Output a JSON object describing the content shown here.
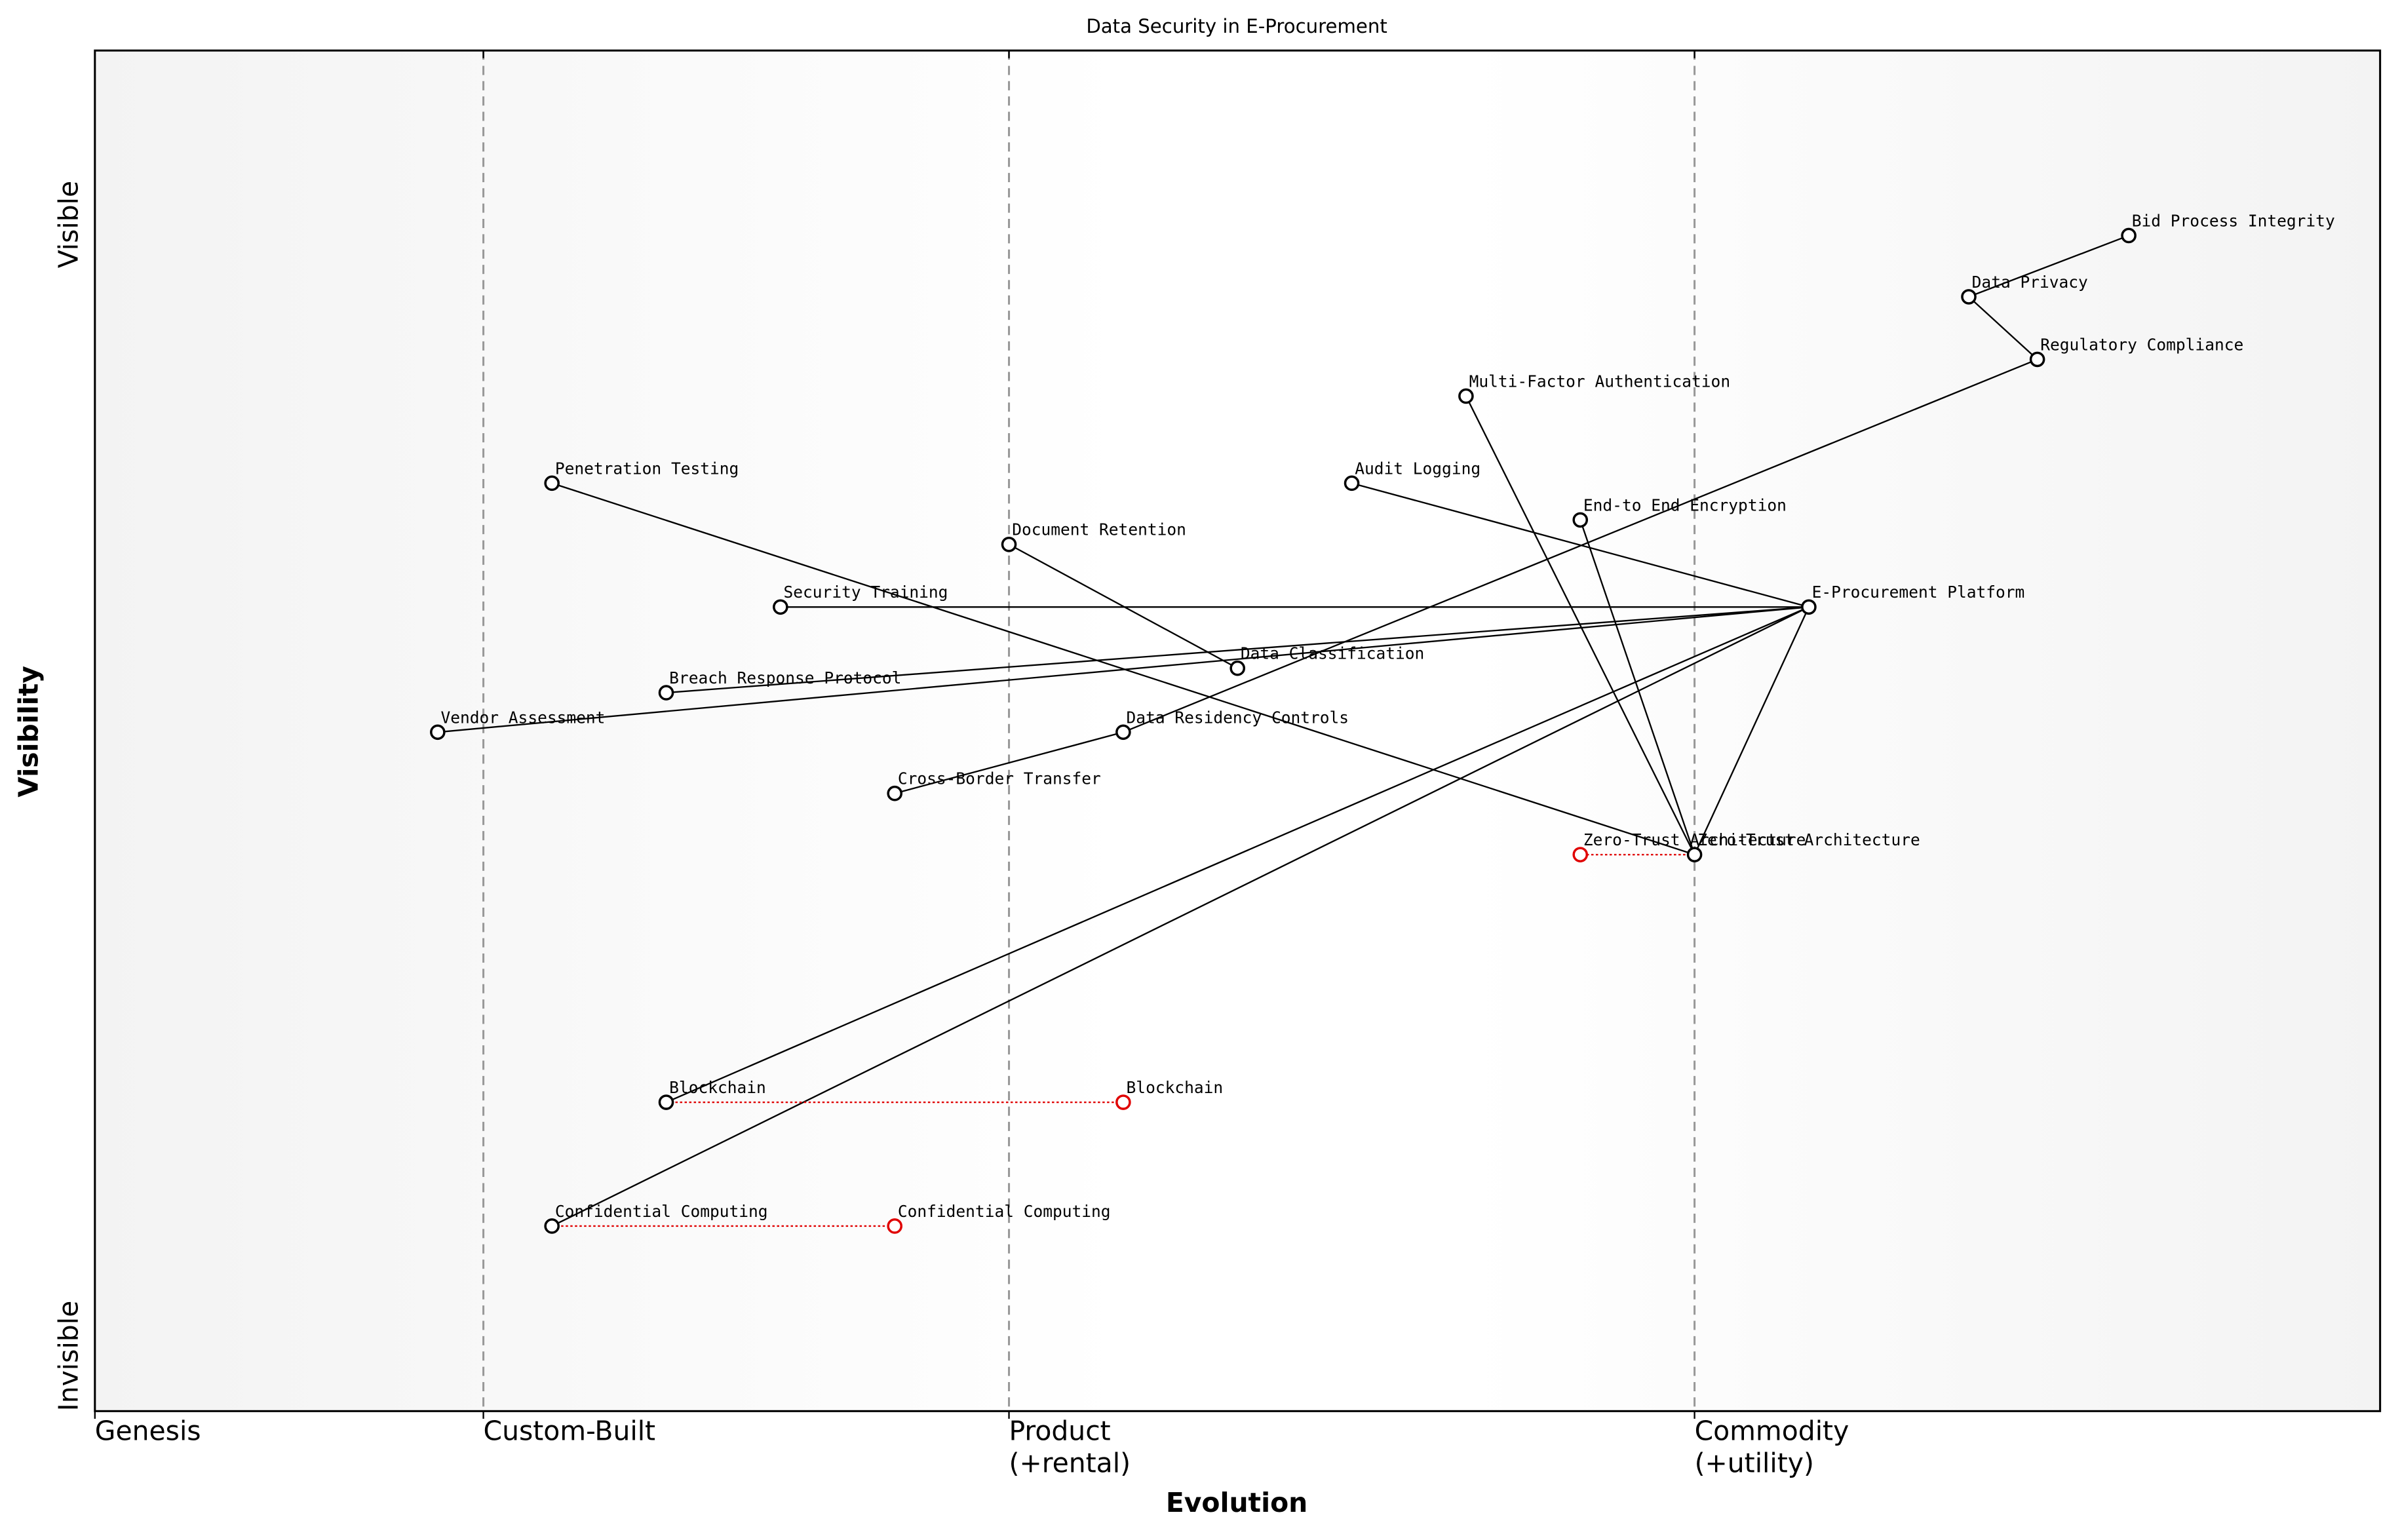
{
  "chart_data": {
    "type": "wardley",
    "title": "Data Security in E-Procurement",
    "x_label": "Evolution",
    "y_label": "Visibility",
    "y_top_label": "Visible",
    "y_bottom_label": "Invisible",
    "xlim": [
      0,
      1
    ],
    "ylim": [
      0,
      1
    ],
    "xticks": [
      {
        "value": 0,
        "label": "Genesis"
      },
      {
        "value": 0.17,
        "label": "Custom-Built"
      },
      {
        "value": 0.4,
        "label": "Product\n(+rental)"
      },
      {
        "value": 0.7,
        "label": "Commodity\n(+utility)"
      }
    ],
    "stage_lines": true,
    "components": [
      {
        "name": "Bid Process Integrity",
        "x": 0.89,
        "y": 0.864
      },
      {
        "name": "Data Privacy",
        "x": 0.82,
        "y": 0.819
      },
      {
        "name": "Regulatory Compliance",
        "x": 0.85,
        "y": 0.773
      },
      {
        "name": "Multi-Factor Authentication",
        "x": 0.6,
        "y": 0.746
      },
      {
        "name": "Audit Logging",
        "x": 0.55,
        "y": 0.682
      },
      {
        "name": "End-to End Encryption",
        "x": 0.65,
        "y": 0.655
      },
      {
        "name": "Penetration Testing",
        "x": 0.2,
        "y": 0.682
      },
      {
        "name": "Document Retention",
        "x": 0.4,
        "y": 0.637
      },
      {
        "name": "Security Training",
        "x": 0.3,
        "y": 0.591
      },
      {
        "name": "E-Procurement Platform",
        "x": 0.75,
        "y": 0.591
      },
      {
        "name": "Data Classification",
        "x": 0.5,
        "y": 0.546
      },
      {
        "name": "Breach Response Protocol",
        "x": 0.25,
        "y": 0.528
      },
      {
        "name": "Vendor Assessment",
        "x": 0.15,
        "y": 0.499
      },
      {
        "name": "Data Residency Controls",
        "x": 0.45,
        "y": 0.499
      },
      {
        "name": "Cross-Border Transfer",
        "x": 0.35,
        "y": 0.454
      },
      {
        "name": "Zero-Trust Architecture",
        "x": 0.7,
        "y": 0.409
      },
      {
        "name": "Blockchain",
        "x": 0.25,
        "y": 0.227
      },
      {
        "name": "Confidential Computing",
        "x": 0.2,
        "y": 0.136
      }
    ],
    "links": [
      [
        "Bid Process Integrity",
        "Data Privacy"
      ],
      [
        "Data Privacy",
        "Regulatory Compliance"
      ],
      [
        "Regulatory Compliance",
        "Data Residency Controls"
      ],
      [
        "Data Residency Controls",
        "Cross-Border Transfer"
      ],
      [
        "Multi-Factor Authentication",
        "Zero-Trust Architecture"
      ],
      [
        "End-to End Encryption",
        "Zero-Trust Architecture"
      ],
      [
        "Audit Logging",
        "E-Procurement Platform"
      ],
      [
        "Penetration Testing",
        "Zero-Trust Architecture"
      ],
      [
        "Document Retention",
        "Data Classification"
      ],
      [
        "Security Training",
        "E-Procurement Platform"
      ],
      [
        "Breach Response Protocol",
        "E-Procurement Platform"
      ],
      [
        "Vendor Assessment",
        "E-Procurement Platform"
      ],
      [
        "E-Procurement Platform",
        "Zero-Trust Architecture"
      ],
      [
        "E-Procurement Platform",
        "Blockchain"
      ],
      [
        "E-Procurement Platform",
        "Confidential Computing"
      ]
    ],
    "evolutions": [
      {
        "name": "Zero-Trust Architecture",
        "x": 0.65
      },
      {
        "name": "Blockchain",
        "x": 0.45
      },
      {
        "name": "Confidential Computing",
        "x": 0.35
      }
    ],
    "link_color": "#000000",
    "evolution_color": "#e00000"
  }
}
